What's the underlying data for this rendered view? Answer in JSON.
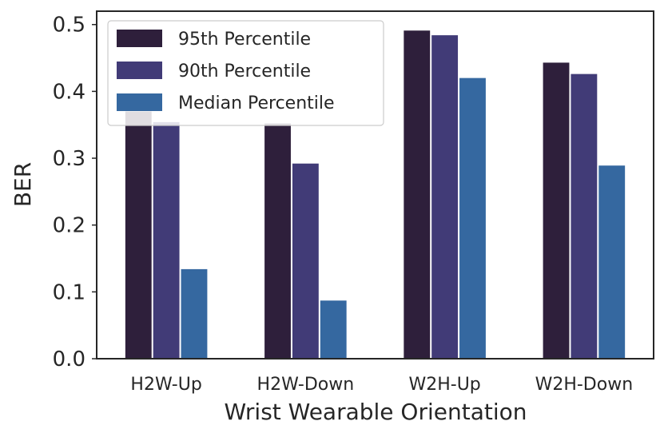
{
  "chart_data": {
    "type": "bar",
    "title": "",
    "xlabel": "Wrist Wearable Orientation",
    "ylabel": "BER",
    "ylim": [
      0,
      0.52
    ],
    "yticks": [
      0.0,
      0.1,
      0.2,
      0.3,
      0.4,
      0.5
    ],
    "ytick_labels": [
      "0.0",
      "0.1",
      "0.2",
      "0.3",
      "0.4",
      "0.5"
    ],
    "categories": [
      "H2W-Up",
      "H2W-Down",
      "W2H-Up",
      "W2H-Down"
    ],
    "series": [
      {
        "name": "95th Percentile",
        "color": "#2e1f3b",
        "values": [
          0.37,
          0.352,
          0.491,
          0.443
        ]
      },
      {
        "name": "90th Percentile",
        "color": "#413b77",
        "values": [
          0.354,
          0.292,
          0.484,
          0.426
        ]
      },
      {
        "name": "Median Percentile",
        "color": "#3568a0",
        "values": [
          0.134,
          0.087,
          0.42,
          0.289
        ]
      }
    ],
    "grid": false,
    "legend": "top-left"
  }
}
